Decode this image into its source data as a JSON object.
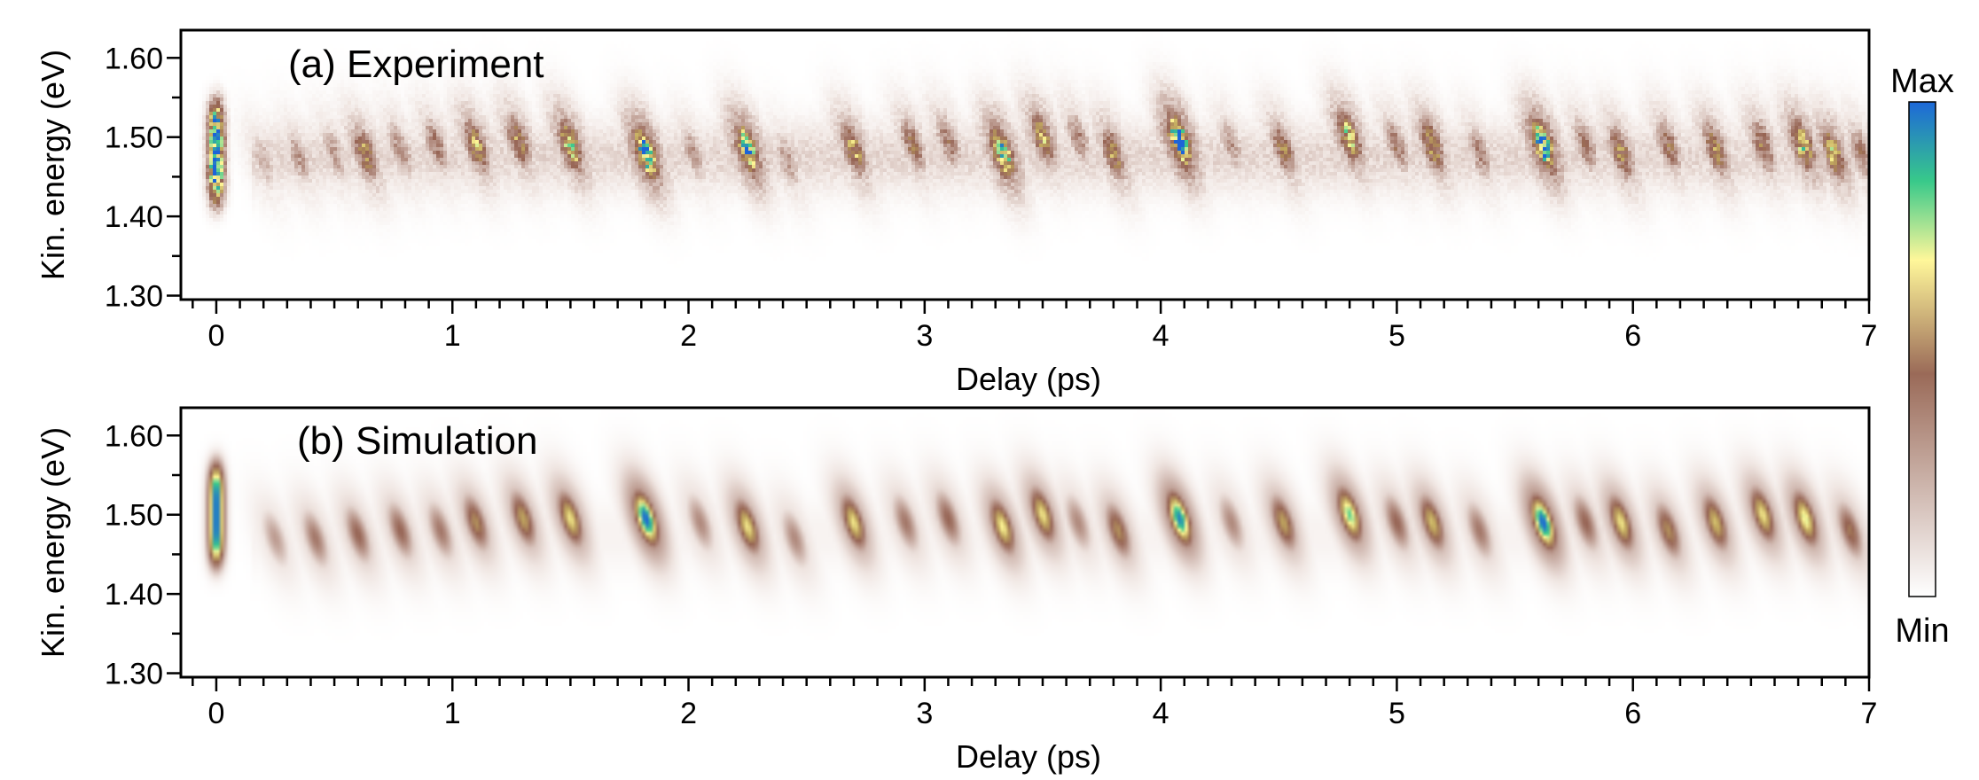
{
  "chart_data": [
    {
      "type": "heatmap",
      "title": "(a) Experiment",
      "xlabel": "Delay (ps)",
      "ylabel": "Kin. energy (eV)",
      "xlim": [
        -0.15,
        7.0
      ],
      "ylim": [
        1.295,
        1.635
      ],
      "x_ticks": [
        0,
        1,
        2,
        3,
        4,
        5,
        6,
        7
      ],
      "x_tick_labels": [
        "0",
        "1",
        "2",
        "3",
        "4",
        "5",
        "6",
        "7"
      ],
      "y_ticks": [
        1.3,
        1.4,
        1.5,
        1.6
      ],
      "y_tick_labels": [
        "1.30",
        "1.40",
        "1.50",
        "1.60"
      ],
      "grid": false,
      "noise": true,
      "peaks": [
        {
          "t": 0.0,
          "e": 1.48,
          "intensity": 1.0,
          "kind": "stripe"
        },
        {
          "t": 0.2,
          "e": 1.47,
          "intensity": 0.25
        },
        {
          "t": 0.35,
          "e": 1.475,
          "intensity": 0.3
        },
        {
          "t": 0.5,
          "e": 1.48,
          "intensity": 0.3
        },
        {
          "t": 0.63,
          "e": 1.48,
          "intensity": 0.55
        },
        {
          "t": 0.78,
          "e": 1.485,
          "intensity": 0.35
        },
        {
          "t": 0.93,
          "e": 1.49,
          "intensity": 0.4
        },
        {
          "t": 1.1,
          "e": 1.49,
          "intensity": 0.6
        },
        {
          "t": 1.28,
          "e": 1.495,
          "intensity": 0.55
        },
        {
          "t": 1.5,
          "e": 1.49,
          "intensity": 0.72
        },
        {
          "t": 1.82,
          "e": 1.48,
          "intensity": 0.92
        },
        {
          "t": 2.02,
          "e": 1.48,
          "intensity": 0.3
        },
        {
          "t": 2.25,
          "e": 1.485,
          "intensity": 0.85
        },
        {
          "t": 2.42,
          "e": 1.47,
          "intensity": 0.3
        },
        {
          "t": 2.7,
          "e": 1.485,
          "intensity": 0.6
        },
        {
          "t": 2.95,
          "e": 1.49,
          "intensity": 0.45
        },
        {
          "t": 3.1,
          "e": 1.495,
          "intensity": 0.4
        },
        {
          "t": 3.33,
          "e": 1.48,
          "intensity": 0.85
        },
        {
          "t": 3.5,
          "e": 1.5,
          "intensity": 0.6
        },
        {
          "t": 3.65,
          "e": 1.5,
          "intensity": 0.35
        },
        {
          "t": 3.8,
          "e": 1.48,
          "intensity": 0.55
        },
        {
          "t": 4.08,
          "e": 1.495,
          "intensity": 1.0
        },
        {
          "t": 4.3,
          "e": 1.49,
          "intensity": 0.3
        },
        {
          "t": 4.52,
          "e": 1.485,
          "intensity": 0.5
        },
        {
          "t": 4.8,
          "e": 1.5,
          "intensity": 0.7
        },
        {
          "t": 5.0,
          "e": 1.49,
          "intensity": 0.4
        },
        {
          "t": 5.15,
          "e": 1.49,
          "intensity": 0.6
        },
        {
          "t": 5.35,
          "e": 1.48,
          "intensity": 0.35
        },
        {
          "t": 5.62,
          "e": 1.49,
          "intensity": 0.95
        },
        {
          "t": 5.8,
          "e": 1.49,
          "intensity": 0.4
        },
        {
          "t": 5.95,
          "e": 1.48,
          "intensity": 0.55
        },
        {
          "t": 6.15,
          "e": 1.49,
          "intensity": 0.45
        },
        {
          "t": 6.35,
          "e": 1.485,
          "intensity": 0.55
        },
        {
          "t": 6.55,
          "e": 1.49,
          "intensity": 0.5
        },
        {
          "t": 6.72,
          "e": 1.49,
          "intensity": 0.7
        },
        {
          "t": 6.85,
          "e": 1.48,
          "intensity": 0.65
        },
        {
          "t": 6.97,
          "e": 1.48,
          "intensity": 0.4
        }
      ]
    },
    {
      "type": "heatmap",
      "title": "(b) Simulation",
      "xlabel": "Delay (ps)",
      "ylabel": "Kin. energy (eV)",
      "xlim": [
        -0.15,
        7.0
      ],
      "ylim": [
        1.295,
        1.635
      ],
      "x_ticks": [
        0,
        1,
        2,
        3,
        4,
        5,
        6,
        7
      ],
      "x_tick_labels": [
        "0",
        "1",
        "2",
        "3",
        "4",
        "5",
        "6",
        "7"
      ],
      "y_ticks": [
        1.3,
        1.4,
        1.5,
        1.6
      ],
      "y_tick_labels": [
        "1.30",
        "1.40",
        "1.50",
        "1.60"
      ],
      "grid": false,
      "noise": false,
      "peaks": [
        {
          "t": 0.0,
          "e": 1.5,
          "intensity": 1.0,
          "kind": "stripe"
        },
        {
          "t": 0.25,
          "e": 1.47,
          "intensity": 0.3
        },
        {
          "t": 0.42,
          "e": 1.47,
          "intensity": 0.4
        },
        {
          "t": 0.6,
          "e": 1.475,
          "intensity": 0.45
        },
        {
          "t": 0.78,
          "e": 1.48,
          "intensity": 0.45
        },
        {
          "t": 0.95,
          "e": 1.48,
          "intensity": 0.4
        },
        {
          "t": 1.1,
          "e": 1.49,
          "intensity": 0.55
        },
        {
          "t": 1.3,
          "e": 1.495,
          "intensity": 0.6
        },
        {
          "t": 1.5,
          "e": 1.495,
          "intensity": 0.7
        },
        {
          "t": 1.82,
          "e": 1.495,
          "intensity": 1.0
        },
        {
          "t": 2.05,
          "e": 1.49,
          "intensity": 0.35
        },
        {
          "t": 2.25,
          "e": 1.485,
          "intensity": 0.7
        },
        {
          "t": 2.45,
          "e": 1.47,
          "intensity": 0.35
        },
        {
          "t": 2.7,
          "e": 1.49,
          "intensity": 0.7
        },
        {
          "t": 2.92,
          "e": 1.49,
          "intensity": 0.4
        },
        {
          "t": 3.1,
          "e": 1.495,
          "intensity": 0.45
        },
        {
          "t": 3.33,
          "e": 1.485,
          "intensity": 0.72
        },
        {
          "t": 3.5,
          "e": 1.5,
          "intensity": 0.7
        },
        {
          "t": 3.65,
          "e": 1.49,
          "intensity": 0.35
        },
        {
          "t": 3.82,
          "e": 1.48,
          "intensity": 0.55
        },
        {
          "t": 4.08,
          "e": 1.495,
          "intensity": 0.95
        },
        {
          "t": 4.3,
          "e": 1.49,
          "intensity": 0.35
        },
        {
          "t": 4.52,
          "e": 1.49,
          "intensity": 0.6
        },
        {
          "t": 4.8,
          "e": 1.5,
          "intensity": 0.82
        },
        {
          "t": 5.0,
          "e": 1.49,
          "intensity": 0.45
        },
        {
          "t": 5.15,
          "e": 1.49,
          "intensity": 0.65
        },
        {
          "t": 5.35,
          "e": 1.48,
          "intensity": 0.4
        },
        {
          "t": 5.62,
          "e": 1.49,
          "intensity": 1.0
        },
        {
          "t": 5.8,
          "e": 1.49,
          "intensity": 0.45
        },
        {
          "t": 5.95,
          "e": 1.49,
          "intensity": 0.7
        },
        {
          "t": 6.15,
          "e": 1.48,
          "intensity": 0.55
        },
        {
          "t": 6.35,
          "e": 1.49,
          "intensity": 0.65
        },
        {
          "t": 6.55,
          "e": 1.5,
          "intensity": 0.7
        },
        {
          "t": 6.73,
          "e": 1.495,
          "intensity": 0.75
        },
        {
          "t": 6.92,
          "e": 1.48,
          "intensity": 0.5
        }
      ]
    }
  ],
  "colorbar": {
    "max_label": "Max",
    "min_label": "Min",
    "colors": [
      "#ffffff",
      "#a06e5c",
      "#fff79a",
      "#38c98a",
      "#1d68d8"
    ]
  }
}
